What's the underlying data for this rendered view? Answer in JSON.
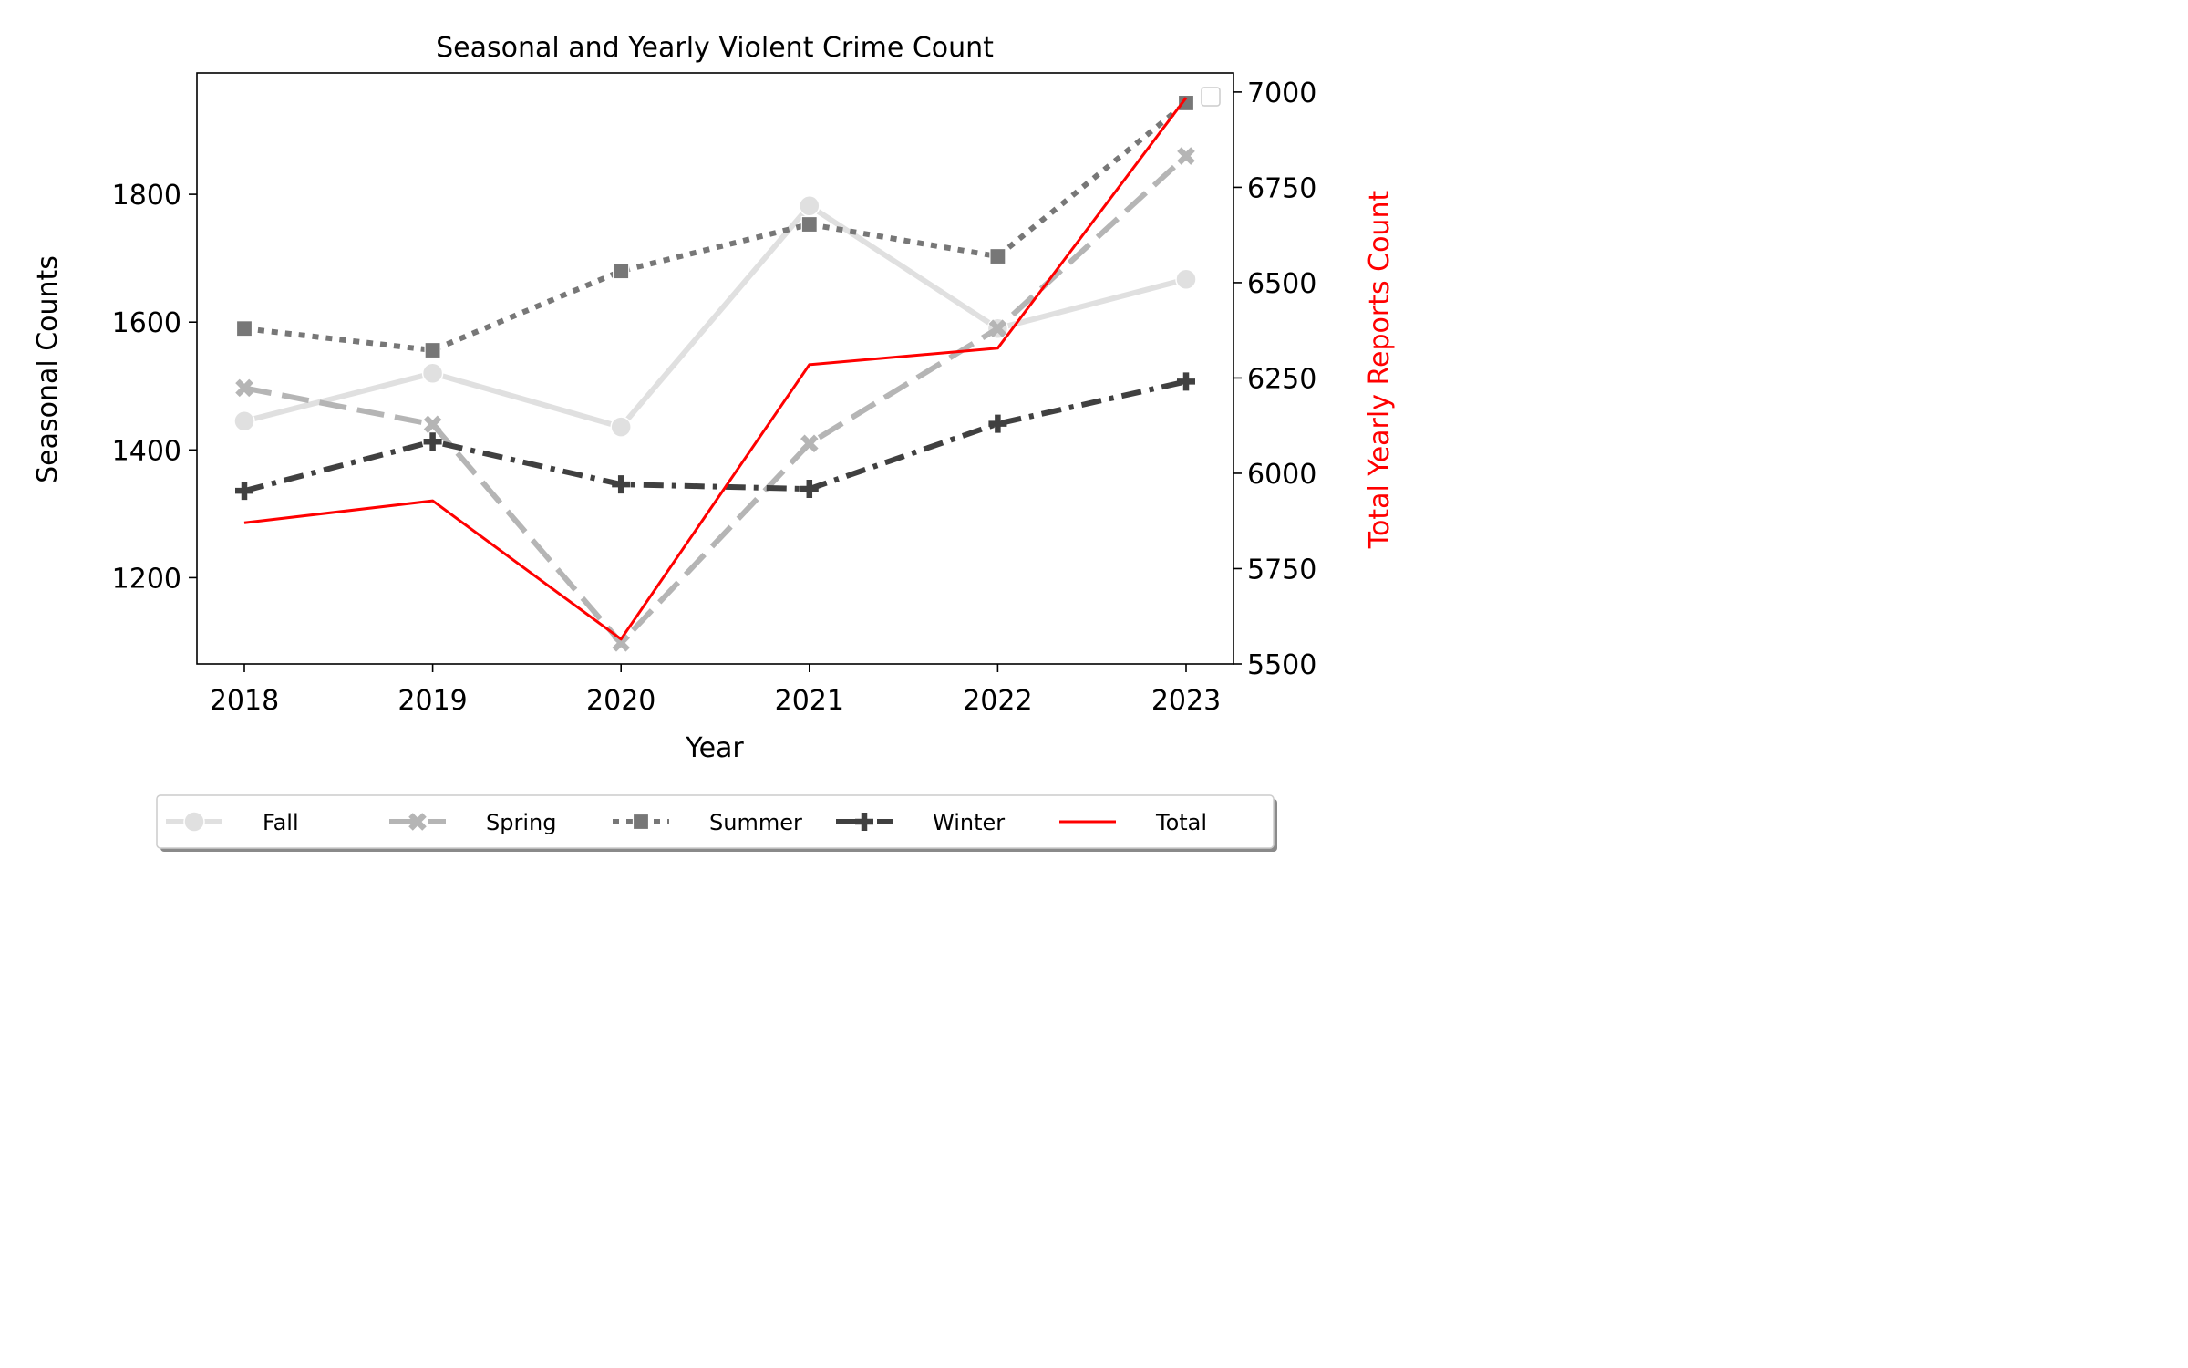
{
  "chart_data": {
    "type": "line",
    "title": "Seasonal and Yearly Violent Crime Count",
    "xlabel": "Year",
    "ylabel": "Seasonal Counts",
    "y2label": "Total Yearly Reports Count",
    "x": [
      2018,
      2019,
      2020,
      2021,
      2022,
      2023
    ],
    "x_tick_labels": [
      "2018",
      "2019",
      "2020",
      "2021",
      "2022",
      "2023"
    ],
    "ylim": [
      1065,
      1990
    ],
    "y_ticks": [
      1200,
      1400,
      1600,
      1800
    ],
    "y_tick_labels": [
      "1200",
      "1400",
      "1600",
      "1800"
    ],
    "y2lim": [
      5500,
      7050
    ],
    "y2_ticks": [
      5500,
      5750,
      6000,
      6250,
      6500,
      6750,
      7000
    ],
    "y2_tick_labels": [
      "5500",
      "5750",
      "6000",
      "6250",
      "6500",
      "6750",
      "7000"
    ],
    "grid": false,
    "legend_position": "bottom",
    "series": [
      {
        "name": "Fall",
        "axis": "left",
        "color": "#e0e0e0",
        "dash": "solid",
        "marker": "circle",
        "values": [
          1445,
          1520,
          1436,
          1782,
          1590,
          1667
        ]
      },
      {
        "name": "Spring",
        "axis": "left",
        "color": "#b5b5b5",
        "dash": "dashed",
        "marker": "x",
        "values": [
          1497,
          1440,
          1098,
          1410,
          1590,
          1860
        ]
      },
      {
        "name": "Summer",
        "axis": "left",
        "color": "#777777",
        "dash": "dotted",
        "marker": "square",
        "values": [
          1590,
          1556,
          1680,
          1753,
          1703,
          1943
        ]
      },
      {
        "name": "Winter",
        "axis": "left",
        "color": "#404040",
        "dash": "dashdot",
        "marker": "plus",
        "values": [
          1336,
          1413,
          1346,
          1339,
          1441,
          1507
        ]
      },
      {
        "name": "Total",
        "axis": "right",
        "color": "#ff0000",
        "dash": "solid",
        "marker": "none",
        "values": [
          5870,
          5928,
          5565,
          6285,
          6328,
          6985
        ]
      }
    ]
  }
}
